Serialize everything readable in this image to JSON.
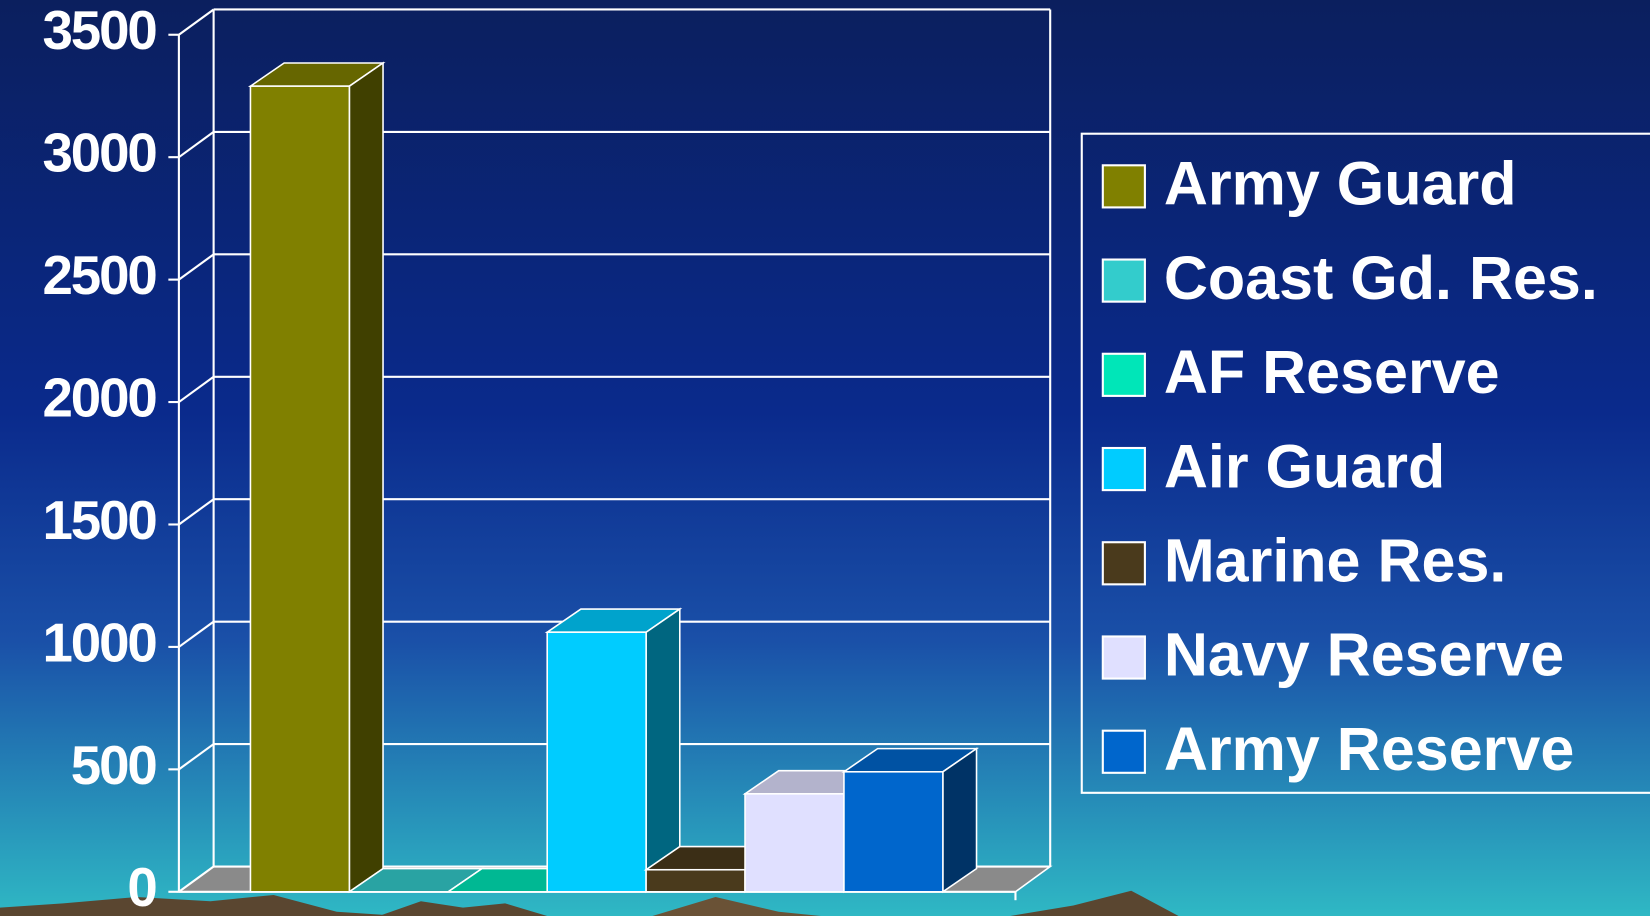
{
  "chart_data": {
    "type": "bar3d",
    "ylim": [
      0,
      3500
    ],
    "yticks": [
      0,
      500,
      1000,
      1500,
      2000,
      2500,
      3000,
      3500
    ],
    "grid": true,
    "legend": "right",
    "series": [
      {
        "name": "Army Guard",
        "color": "#808000",
        "values": [
          3290
        ]
      },
      {
        "name": "Coast Gd. Res.",
        "color": "#33cccc",
        "values": [
          0
        ]
      },
      {
        "name": "AF Reserve",
        "color": "#00e6b8",
        "values": [
          0
        ]
      },
      {
        "name": "Air Guard",
        "color": "#00ccff",
        "values": [
          1060
        ]
      },
      {
        "name": "Marine Res.",
        "color": "#4a3a1c",
        "values": [
          90
        ]
      },
      {
        "name": "Navy Reserve",
        "color": "#e0e0ff",
        "values": [
          400
        ]
      },
      {
        "name": "Army Reserve",
        "color": "#0066cc",
        "values": [
          490
        ]
      }
    ]
  }
}
